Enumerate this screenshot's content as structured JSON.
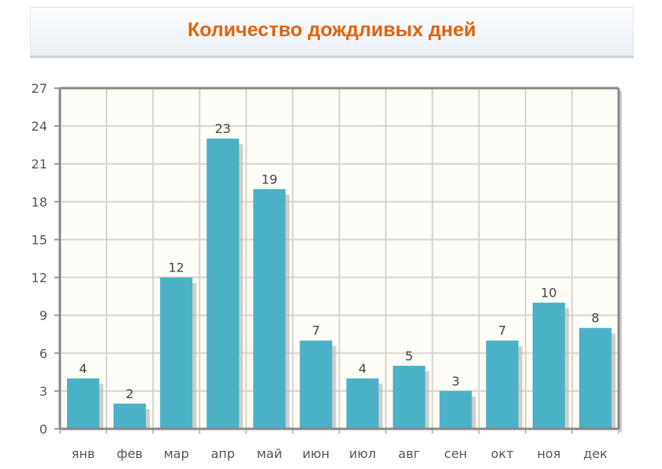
{
  "chart_data": {
    "type": "bar",
    "title": "Количество дождливых дней",
    "categories": [
      "янв",
      "фев",
      "мар",
      "апр",
      "май",
      "июн",
      "июл",
      "авг",
      "сен",
      "окт",
      "ноя",
      "дек"
    ],
    "values": [
      4,
      2,
      12,
      23,
      19,
      7,
      4,
      5,
      3,
      7,
      10,
      8
    ],
    "ylim": [
      0,
      27
    ],
    "yticks": [
      0,
      3,
      6,
      9,
      12,
      15,
      18,
      21,
      24,
      27
    ],
    "grid": true,
    "data_labels": true,
    "colors": {
      "bar": "#4bb1c6",
      "title": "#e0630e",
      "plot_bg": "#fdfcf6"
    }
  }
}
